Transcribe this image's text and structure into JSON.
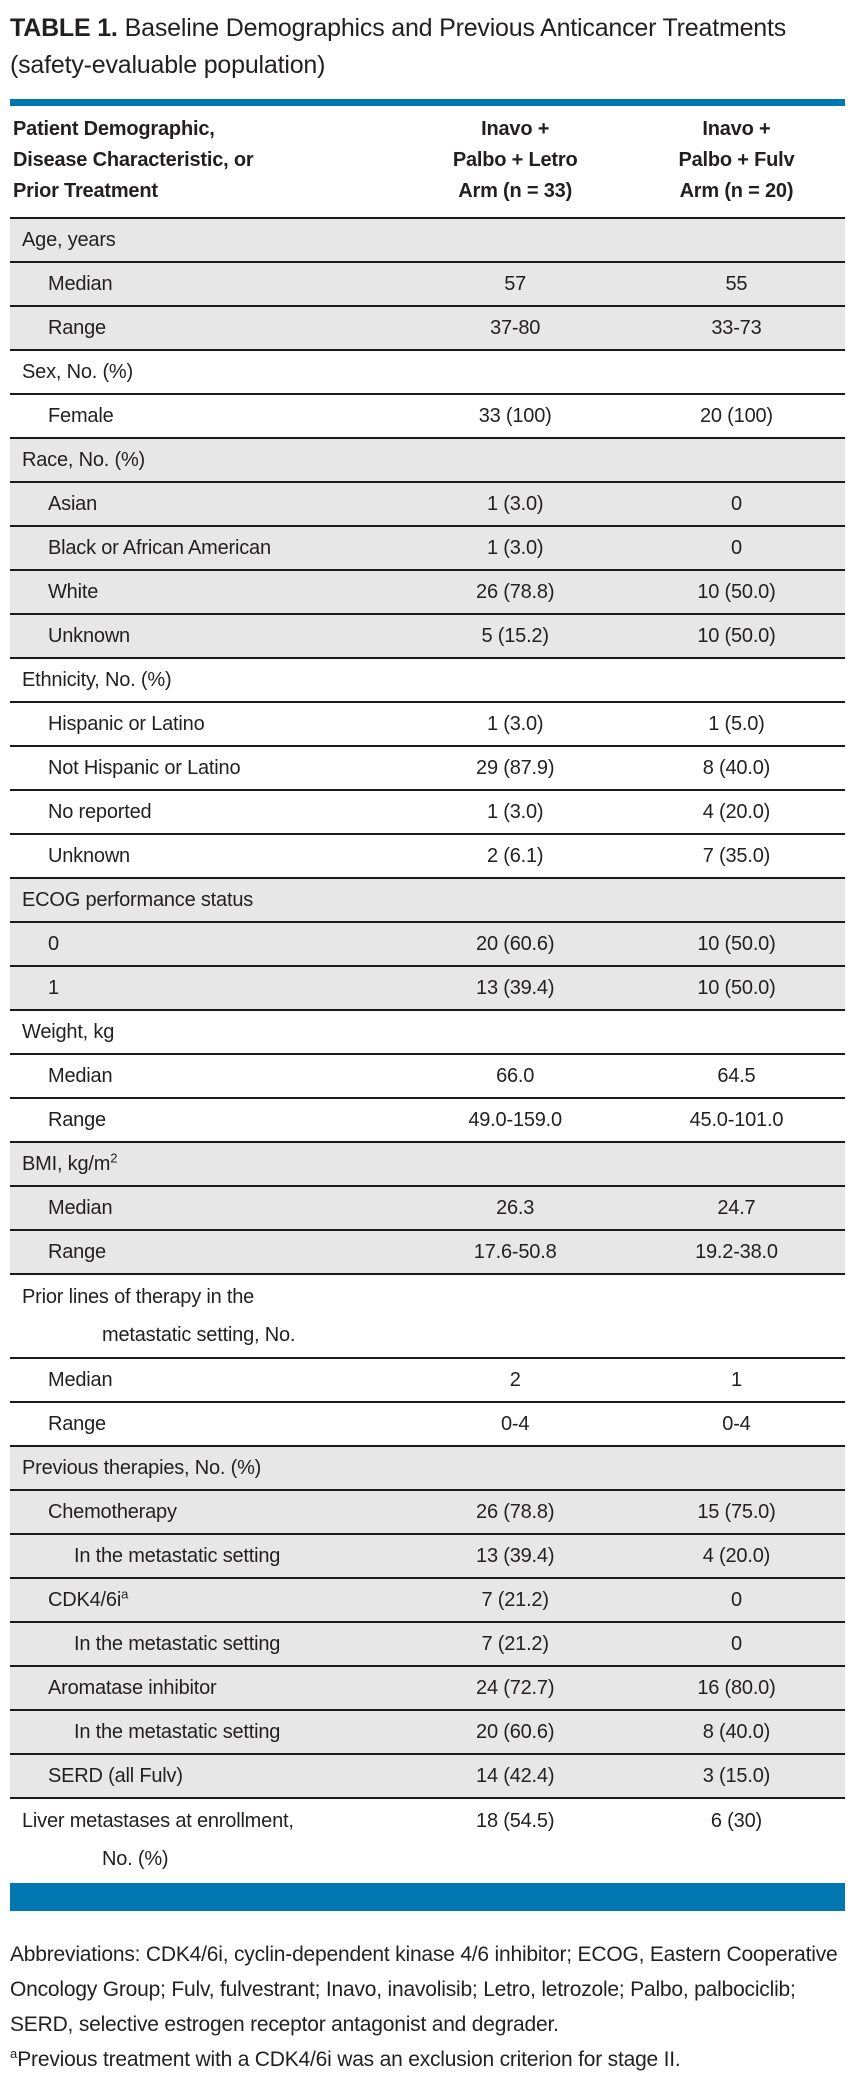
{
  "colors": {
    "accent_blue": "#0077b1",
    "row_shade": "#e7e7e7",
    "rule_black": "#1b1b1b",
    "text_black": "#231f20"
  },
  "page": {
    "title_label": "TABLE 1.",
    "title_text": "Baseline Demographics and Previous Anticancer Treatments (safety-evaluable population)"
  },
  "table": {
    "header": {
      "col1_lines": [
        "Patient Demographic,",
        "Disease Characteristic, or",
        "Prior Treatment"
      ],
      "col2_lines": [
        "Inavo +",
        "Palbo + Letro",
        "Arm (n = 33)"
      ],
      "col3_lines": [
        "Inavo +",
        "Palbo + Fulv",
        "Arm (n = 20)"
      ]
    },
    "sections": [
      {
        "label": "Age, years",
        "shaded": true,
        "rows": [
          {
            "indent": 1,
            "label": "Median",
            "v1": "57",
            "v2": "55"
          },
          {
            "indent": 1,
            "label": "Range",
            "v1": "37-80",
            "v2": "33-73"
          }
        ]
      },
      {
        "label": "Sex, No. (%)",
        "shaded": false,
        "rows": [
          {
            "indent": 1,
            "label": "Female",
            "v1": "33 (100)",
            "v2": "20 (100)"
          }
        ]
      },
      {
        "label": "Race, No. (%)",
        "shaded": true,
        "rows": [
          {
            "indent": 1,
            "label": "Asian",
            "v1": "1 (3.0)",
            "v2": "0"
          },
          {
            "indent": 1,
            "label": "Black or African American",
            "v1": "1 (3.0)",
            "v2": "0"
          },
          {
            "indent": 1,
            "label": "White",
            "v1": "26 (78.8)",
            "v2": "10 (50.0)"
          },
          {
            "indent": 1,
            "label": "Unknown",
            "v1": "5 (15.2)",
            "v2": "10 (50.0)"
          }
        ]
      },
      {
        "label": "Ethnicity, No. (%)",
        "shaded": false,
        "rows": [
          {
            "indent": 1,
            "label": "Hispanic or Latino",
            "v1": "1 (3.0)",
            "v2": "1 (5.0)"
          },
          {
            "indent": 1,
            "label": "Not Hispanic or Latino",
            "v1": "29 (87.9)",
            "v2": "8 (40.0)"
          },
          {
            "indent": 1,
            "label": "No reported",
            "v1": "1 (3.0)",
            "v2": "4 (20.0)"
          },
          {
            "indent": 1,
            "label": "Unknown",
            "v1": "2 (6.1)",
            "v2": "7 (35.0)"
          }
        ]
      },
      {
        "label": "ECOG performance status",
        "shaded": true,
        "rows": [
          {
            "indent": 1,
            "label": "0",
            "v1": "20 (60.6)",
            "v2": "10 (50.0)"
          },
          {
            "indent": 1,
            "label": "1",
            "v1": "13 (39.4)",
            "v2": "10 (50.0)"
          }
        ]
      },
      {
        "label": "Weight, kg",
        "shaded": false,
        "rows": [
          {
            "indent": 1,
            "label": "Median",
            "v1": "66.0",
            "v2": "64.5"
          },
          {
            "indent": 1,
            "label": "Range",
            "v1": "49.0-159.0",
            "v2": "45.0-101.0"
          }
        ]
      },
      {
        "label": "BMI, kg/m",
        "label_sup": "2",
        "shaded": true,
        "rows": [
          {
            "indent": 1,
            "label": "Median",
            "v1": "26.3",
            "v2": "24.7"
          },
          {
            "indent": 1,
            "label": "Range",
            "v1": "17.6-50.8",
            "v2": "19.2-38.0"
          }
        ]
      },
      {
        "label_lines": [
          "Prior lines of therapy in the",
          "metastatic setting, No."
        ],
        "shaded": false,
        "rows": [
          {
            "indent": 1,
            "label": "Median",
            "v1": "2",
            "v2": "1"
          },
          {
            "indent": 1,
            "label": "Range",
            "v1": "0-4",
            "v2": "0-4"
          }
        ]
      },
      {
        "label": "Previous therapies, No. (%)",
        "shaded": true,
        "rows": [
          {
            "indent": 1,
            "label": "Chemotherapy",
            "v1": "26 (78.8)",
            "v2": "15 (75.0)"
          },
          {
            "indent": 2,
            "label": "In the metastatic setting",
            "v1": "13 (39.4)",
            "v2": "4 (20.0)"
          },
          {
            "indent": 1,
            "label": "CDK4/6i",
            "sup": "a",
            "v1": "7 (21.2)",
            "v2": "0"
          },
          {
            "indent": 2,
            "label": "In the metastatic setting",
            "v1": "7 (21.2)",
            "v2": "0"
          },
          {
            "indent": 1,
            "label": "Aromatase inhibitor",
            "v1": "24 (72.7)",
            "v2": "16 (80.0)"
          },
          {
            "indent": 2,
            "label": "In the metastatic setting",
            "v1": "20 (60.6)",
            "v2": "8 (40.0)"
          },
          {
            "indent": 1,
            "label": "SERD (all Fulv)",
            "v1": "14 (42.4)",
            "v2": "3 (15.0)"
          }
        ]
      },
      {
        "label_lines": [
          "Liver metastases at enrollment,",
          "No. (%)"
        ],
        "shaded": false,
        "v1": "18 (54.5)",
        "v2": "6 (30)",
        "rows": []
      }
    ]
  },
  "footnotes": {
    "abbreviations": "Abbreviations: CDK4/6i, cyclin-dependent kinase 4/6 inhibitor; ECOG, Eastern Cooperative Oncology Group; Fulv, fulvestrant; Inavo, inavolisib; Letro, letrozole; Palbo, palbociclib; SERD, selective estrogen receptor antagonist and degrader.",
    "note_sup": "a",
    "note_text": "Previous treatment with a CDK4/6i was an exclusion criterion for stage II."
  }
}
